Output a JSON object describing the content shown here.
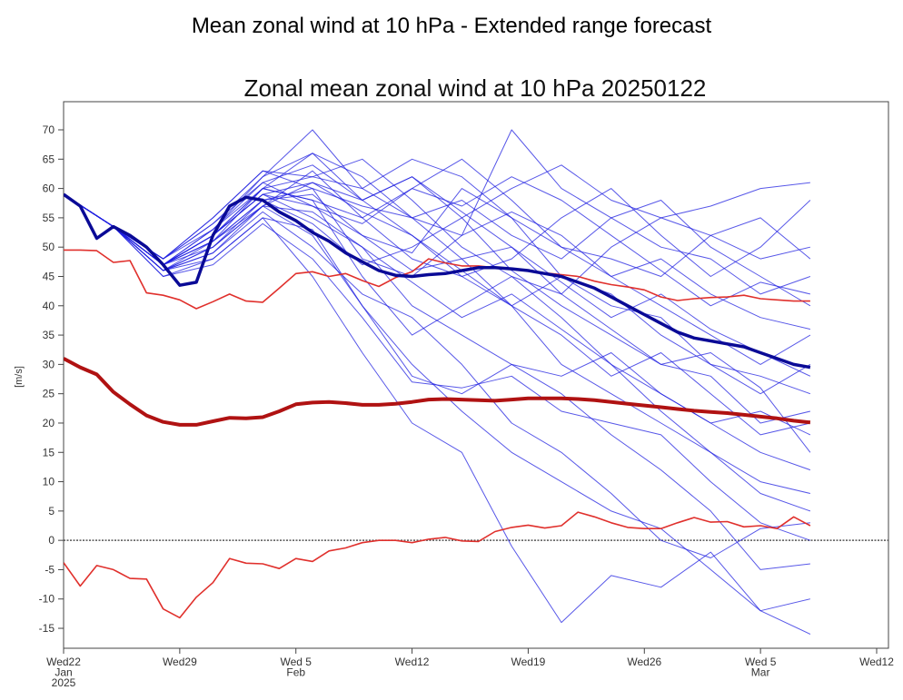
{
  "chart_data": {
    "type": "line",
    "title": "Mean zonal wind at 10 hPa - Extended range forecast",
    "subtitle": "Zonal mean zonal wind at 10 hPa 20250122",
    "ylabel": "[m/s]",
    "xlabel": "",
    "ylim": [
      -18.4,
      74.8
    ],
    "xlim": [
      "2025-01-22",
      "2025-03-12"
    ],
    "grid": false,
    "legend": "none",
    "y_ticks": [
      -15,
      -10,
      -5,
      0,
      5,
      10,
      15,
      20,
      25,
      30,
      35,
      40,
      45,
      50,
      55,
      60,
      65,
      70
    ],
    "x_ticks": [
      {
        "date": "2025-01-22",
        "lines": [
          "Wed22",
          "Jan",
          "2025"
        ]
      },
      {
        "date": "2025-01-29",
        "lines": [
          "Wed29"
        ]
      },
      {
        "date": "2025-02-05",
        "lines": [
          "Wed 5",
          "Feb"
        ]
      },
      {
        "date": "2025-02-12",
        "lines": [
          "Wed12"
        ]
      },
      {
        "date": "2025-02-19",
        "lines": [
          "Wed19"
        ]
      },
      {
        "date": "2025-02-26",
        "lines": [
          "Wed26"
        ]
      },
      {
        "date": "2025-03-05",
        "lines": [
          "Wed 5",
          "Mar"
        ]
      },
      {
        "date": "2025-03-12",
        "lines": [
          "Wed12"
        ]
      }
    ],
    "reference_line": {
      "y": 0,
      "style": "dotted",
      "color": "#555555"
    },
    "colors": {
      "members": "#1f1fe0",
      "ensemble_mean": "#0a0a96",
      "climate_mean": "#b01212",
      "climate_extremes": "#e0302c"
    },
    "dates": [
      "2025-01-22",
      "2025-01-23",
      "2025-01-24",
      "2025-01-25",
      "2025-01-26",
      "2025-01-27",
      "2025-01-28",
      "2025-01-29",
      "2025-01-30",
      "2025-01-31",
      "2025-02-01",
      "2025-02-02",
      "2025-02-03",
      "2025-02-04",
      "2025-02-05",
      "2025-02-06",
      "2025-02-07",
      "2025-02-08",
      "2025-02-09",
      "2025-02-10",
      "2025-02-11",
      "2025-02-12",
      "2025-02-13",
      "2025-02-14",
      "2025-02-15",
      "2025-02-16",
      "2025-02-17",
      "2025-02-18",
      "2025-02-19",
      "2025-02-20",
      "2025-02-21",
      "2025-02-22",
      "2025-02-23",
      "2025-02-24",
      "2025-02-25",
      "2025-02-26",
      "2025-02-27",
      "2025-02-28",
      "2025-03-01",
      "2025-03-02",
      "2025-03-03",
      "2025-03-04",
      "2025-03-05",
      "2025-03-06",
      "2025-03-07",
      "2025-03-08"
    ],
    "series": [
      {
        "key": "climate_max",
        "values": [
          49.5,
          49.5,
          49.4,
          47.4,
          47.7,
          42.2,
          41.8,
          41,
          39.5,
          40.7,
          42,
          40.8,
          40.6,
          43,
          45.5,
          45.8,
          45,
          45.5,
          44.3,
          43.3,
          44.8,
          45.8,
          48,
          47.3,
          46.8,
          46.8,
          46.5,
          46.4,
          46,
          45.6,
          45.3,
          45,
          44.2,
          43.6,
          43.2,
          42.7,
          41.5,
          40.9,
          41.2,
          41.4,
          41.5,
          41.8,
          41.2,
          41,
          40.8,
          40.8
        ]
      },
      {
        "key": "climate_min",
        "values": [
          -3.8,
          -7.8,
          -4.3,
          -5,
          -6.5,
          -6.6,
          -11.7,
          -13.2,
          -9.7,
          -7.2,
          -3.1,
          -3.9,
          -4,
          -4.8,
          -3.1,
          -3.6,
          -1.8,
          -1.3,
          -0.4,
          0,
          0,
          -0.4,
          0.2,
          0.5,
          -0.1,
          -0.2,
          1.5,
          2.2,
          2.6,
          2.1,
          2.5,
          4.8,
          4,
          3,
          2.2,
          2,
          2,
          3,
          3.9,
          3.1,
          3.2,
          2.3,
          2.5,
          2,
          4,
          2.5
        ]
      },
      {
        "key": "climate_mean",
        "values": [
          31,
          29.5,
          28.3,
          25.3,
          23.2,
          21.3,
          20.2,
          19.7,
          19.7,
          20.3,
          20.9,
          20.8,
          21,
          22,
          23.2,
          23.5,
          23.6,
          23.4,
          23.1,
          23.1,
          23.3,
          23.6,
          24,
          24.1,
          24,
          23.9,
          23.8,
          24,
          24.2,
          24.2,
          24.2,
          24.1,
          23.9,
          23.6,
          23.3,
          23,
          22.7,
          22.4,
          22.1,
          21.9,
          21.7,
          21.4,
          21.1,
          20.8,
          20.4,
          20.1
        ]
      },
      {
        "key": "ensemble_mean",
        "values": [
          59,
          57,
          51.5,
          53.5,
          52,
          50,
          47,
          43.5,
          44,
          52,
          57,
          58.5,
          58,
          56,
          54.5,
          52.5,
          51,
          49,
          47.5,
          46,
          45.2,
          45,
          45.3,
          45.5,
          46,
          46.5,
          46.5,
          46.3,
          46,
          45.5,
          45,
          44,
          43,
          41.5,
          40,
          38.5,
          37,
          35.5,
          34.5,
          34,
          33.5,
          33,
          32,
          31,
          30,
          29.5
        ]
      }
    ],
    "member_dates": [
      "2025-01-22",
      "2025-01-25",
      "2025-01-28",
      "2025-01-31",
      "2025-02-03",
      "2025-02-06",
      "2025-02-09",
      "2025-02-12",
      "2025-02-15",
      "2025-02-18",
      "2025-02-21",
      "2025-02-24",
      "2025-02-27",
      "2025-03-02",
      "2025-03-05",
      "2025-03-08"
    ],
    "members": [
      [
        59,
        53.5,
        47,
        51,
        60,
        66,
        58,
        62,
        55,
        60,
        64,
        58,
        55,
        57,
        60,
        61
      ],
      [
        59,
        53.5,
        46,
        49,
        57,
        52,
        40,
        30,
        22,
        15,
        10,
        5,
        2,
        -5,
        -12,
        -16
      ],
      [
        59,
        53.5,
        48,
        54,
        62,
        70,
        60,
        55,
        48,
        40,
        30,
        25,
        20,
        15,
        8,
        5
      ],
      [
        59,
        53.5,
        46,
        48,
        55,
        45,
        32,
        20,
        15,
        -1,
        -14,
        -6,
        -8,
        -2,
        -12,
        -10
      ],
      [
        59,
        53.5,
        47,
        53,
        61,
        57,
        52,
        49,
        60,
        55,
        45,
        40,
        38,
        30,
        28,
        25
      ],
      [
        59,
        53.5,
        47,
        50,
        58,
        60,
        48,
        45,
        52,
        70,
        60,
        55,
        50,
        48,
        42,
        45
      ],
      [
        59,
        53.5,
        45,
        47,
        54,
        48,
        38,
        27,
        26,
        28,
        22,
        20,
        18,
        10,
        3,
        0
      ],
      [
        59,
        53.5,
        48,
        55,
        63,
        62,
        65,
        58,
        50,
        45,
        42,
        50,
        55,
        52,
        48,
        50
      ],
      [
        59,
        53.5,
        47,
        52,
        59,
        55,
        50,
        40,
        35,
        30,
        28,
        32,
        25,
        20,
        15,
        12
      ],
      [
        59,
        53.5,
        46,
        51,
        57,
        63,
        55,
        60,
        65,
        58,
        50,
        45,
        40,
        35,
        30,
        35
      ],
      [
        59,
        53.5,
        47,
        52,
        60,
        58,
        45,
        35,
        40,
        45,
        38,
        30,
        25,
        20,
        22,
        18
      ],
      [
        59,
        53.5,
        48,
        53,
        62,
        66,
        62,
        55,
        58,
        52,
        48,
        55,
        58,
        50,
        45,
        40
      ],
      [
        59,
        53.5,
        46,
        49,
        56,
        50,
        42,
        38,
        30,
        20,
        15,
        8,
        0,
        -3,
        2,
        3
      ],
      [
        59,
        53.5,
        47,
        52,
        59,
        61,
        56,
        52,
        45,
        48,
        55,
        60,
        52,
        45,
        50,
        58
      ],
      [
        59,
        53.5,
        47,
        51,
        58,
        54,
        47,
        50,
        55,
        46,
        40,
        35,
        30,
        28,
        20,
        22
      ],
      [
        59,
        53.5,
        48,
        54,
        61,
        64,
        58,
        62,
        56,
        50,
        44,
        38,
        42,
        36,
        32,
        28
      ],
      [
        59,
        53.5,
        46,
        50,
        57,
        56,
        50,
        44,
        38,
        42,
        36,
        30,
        22,
        15,
        10,
        8
      ],
      [
        59,
        53.5,
        47,
        52,
        60,
        62,
        60,
        65,
        62,
        55,
        50,
        48,
        45,
        52,
        55,
        48
      ],
      [
        59,
        53.5,
        47,
        53,
        60,
        58,
        55,
        48,
        45,
        40,
        45,
        42,
        35,
        30,
        25,
        30
      ],
      [
        59,
        53.5,
        45,
        48,
        55,
        53,
        40,
        28,
        25,
        30,
        25,
        18,
        12,
        5,
        -5,
        -4
      ],
      [
        59,
        53.5,
        48,
        55,
        63,
        60,
        57,
        55,
        52,
        56,
        52,
        45,
        48,
        42,
        38,
        36
      ],
      [
        59,
        53.5,
        47,
        51,
        58,
        59,
        52,
        46,
        48,
        50,
        42,
        36,
        30,
        32,
        26,
        15
      ],
      [
        59,
        53.5,
        46,
        50,
        57,
        61,
        58,
        52,
        46,
        40,
        35,
        28,
        32,
        25,
        18,
        20
      ],
      [
        59,
        53.5,
        47,
        52,
        59,
        57,
        54,
        60,
        57,
        62,
        58,
        52,
        46,
        40,
        44,
        42
      ]
    ]
  }
}
